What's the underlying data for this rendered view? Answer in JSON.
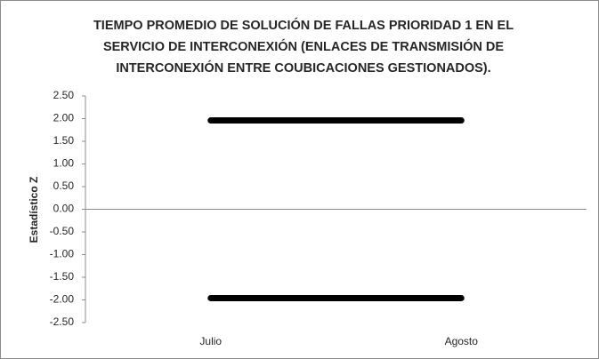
{
  "chart_data": {
    "type": "line",
    "title": "TIEMPO PROMEDIO DE SOLUCIÓN DE FALLAS PRIORIDAD 1 EN EL SERVICIO DE INTERCONEXIÓN (ENLACES DE TRANSMISIÓN DE INTERCONEXIÓN ENTRE COUBICACIONES GESTIONADOS).",
    "y_label": "Estadístico Z",
    "categories": [
      "Julio",
      "Agosto"
    ],
    "series": [
      {
        "color": "#000000",
        "values": [
          1.96,
          1.96
        ]
      },
      {
        "color": "#000000",
        "values": [
          -1.96,
          -1.96
        ]
      }
    ],
    "ylim": [
      -2.5,
      2.5
    ],
    "yticks": [
      {
        "value": 2.5,
        "label": "2.50"
      },
      {
        "value": 2.0,
        "label": "2.00"
      },
      {
        "value": 1.5,
        "label": "1.50"
      },
      {
        "value": 1.0,
        "label": "1.00"
      },
      {
        "value": 0.5,
        "label": "0.50"
      },
      {
        "value": 0,
        "label": "0.00"
      },
      {
        "value": -0.5,
        "label": "-0.50"
      },
      {
        "value": -1.0,
        "label": "-1.00"
      },
      {
        "value": -1.5,
        "label": "-1.50"
      },
      {
        "value": -2.0,
        "label": "-2.00"
      },
      {
        "value": -2.5,
        "label": "-2.50"
      }
    ]
  }
}
